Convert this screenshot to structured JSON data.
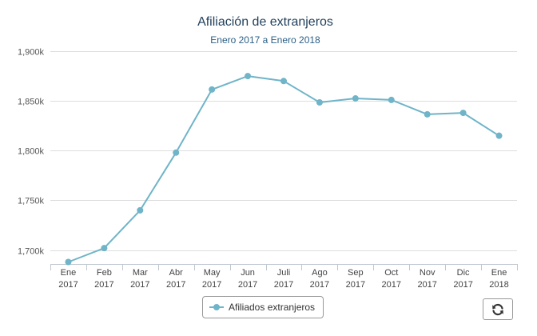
{
  "colors": {
    "series": "#6fb4c8",
    "grid": "#dddddd",
    "axis": "#c0c8d0"
  },
  "icons": {
    "refresh": "refresh-icon"
  },
  "chart_data": {
    "type": "line",
    "title": "Afiliación de extranjeros",
    "subtitle": "Enero 2017 a Enero 2018",
    "categories": [
      [
        "Ene",
        "2017"
      ],
      [
        "Feb",
        "2017"
      ],
      [
        "Mar",
        "2017"
      ],
      [
        "Abr",
        "2017"
      ],
      [
        "May",
        "2017"
      ],
      [
        "Jun",
        "2017"
      ],
      [
        "Juli",
        "2017"
      ],
      [
        "Ago",
        "2017"
      ],
      [
        "Sep",
        "2017"
      ],
      [
        "Oct",
        "2017"
      ],
      [
        "Nov",
        "2017"
      ],
      [
        "Dic",
        "2017"
      ],
      [
        "Ene",
        "2018"
      ]
    ],
    "series": [
      {
        "name": "Afiliados extranjeros",
        "values": [
          1688000,
          1702000,
          1740000,
          1798000,
          1861500,
          1875000,
          1870000,
          1848500,
          1852500,
          1851000,
          1836500,
          1838000,
          1815000
        ]
      }
    ],
    "yticks": [
      {
        "value": 1700000,
        "label": "1,700k"
      },
      {
        "value": 1750000,
        "label": "1,750k"
      },
      {
        "value": 1800000,
        "label": "1,800k"
      },
      {
        "value": 1850000,
        "label": "1,850k"
      },
      {
        "value": 1900000,
        "label": "1,900k"
      }
    ],
    "ylim": [
      1686000,
      1900000
    ],
    "grid": true,
    "legend_position": "bottom-center"
  }
}
